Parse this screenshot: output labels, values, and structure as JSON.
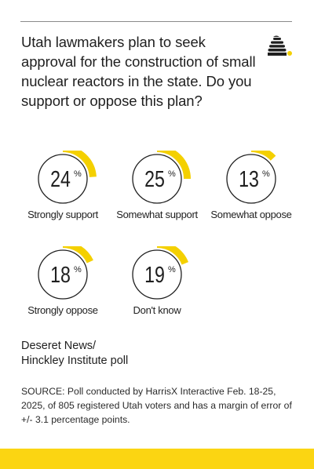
{
  "question": "Utah lawmakers plan to seek approval for the construction of small nuclear reactors in the state. Do you support or oppose this plan?",
  "colors": {
    "accent": "#f4d000",
    "ring": "#1f1f1f",
    "text": "#1f1f1f",
    "band": "#fbd512"
  },
  "logo": {
    "icon": "beehive-icon"
  },
  "chart_data": {
    "type": "pie",
    "categories": [
      "Strongly support",
      "Somewhat support",
      "Somewhat oppose",
      "Strongly oppose",
      "Don't know"
    ],
    "values": [
      24,
      25,
      13,
      18,
      19
    ],
    "value_suffix": "%"
  },
  "source": {
    "title_lines": [
      "Deseret News/",
      "Hinckley Institute poll"
    ],
    "note": "SOURCE: Poll conducted by HarrisX Interactive Feb. 18-25, 2025, of 805 registered Utah voters and has a margin of error of +/- 3.1 percentage points."
  }
}
